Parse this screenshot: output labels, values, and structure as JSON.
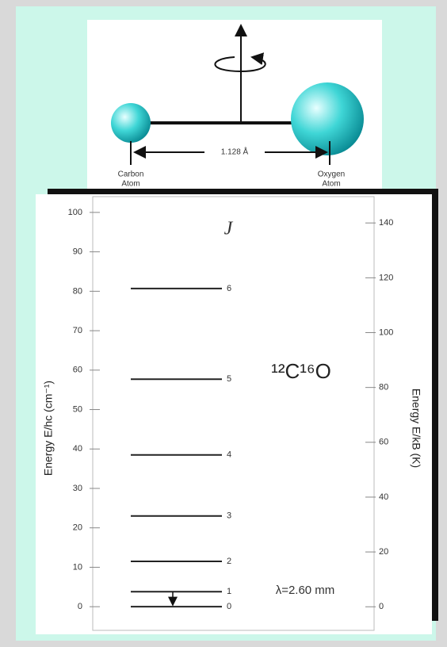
{
  "chart_data": {
    "type": "levels",
    "category_label": "J",
    "categories": [
      "0",
      "1",
      "2",
      "3",
      "4",
      "5",
      "6"
    ],
    "values": [
      0,
      3.8,
      11.5,
      23,
      38.5,
      57.7,
      80.7
    ],
    "color": "#222222",
    "ylabel": "Energy E/hc (cm⁻¹)",
    "y2label": "Energy E/kB (K)",
    "ylim": [
      -6,
      104
    ],
    "yticks": [
      0,
      10,
      20,
      30,
      40,
      50,
      60,
      70,
      80,
      90,
      100
    ],
    "y2lim": [
      -8.6,
      149.6
    ],
    "y2ticks": [
      0,
      20,
      40,
      60,
      80,
      100,
      120,
      140
    ],
    "molecule_label": "¹²C¹⁶O",
    "wavelength": "λ=2.60 mm",
    "bond_length": "1.128 Å",
    "atoms": [
      [
        "Carbon",
        "Atom"
      ],
      [
        "Oxygen",
        "Atom"
      ]
    ]
  }
}
